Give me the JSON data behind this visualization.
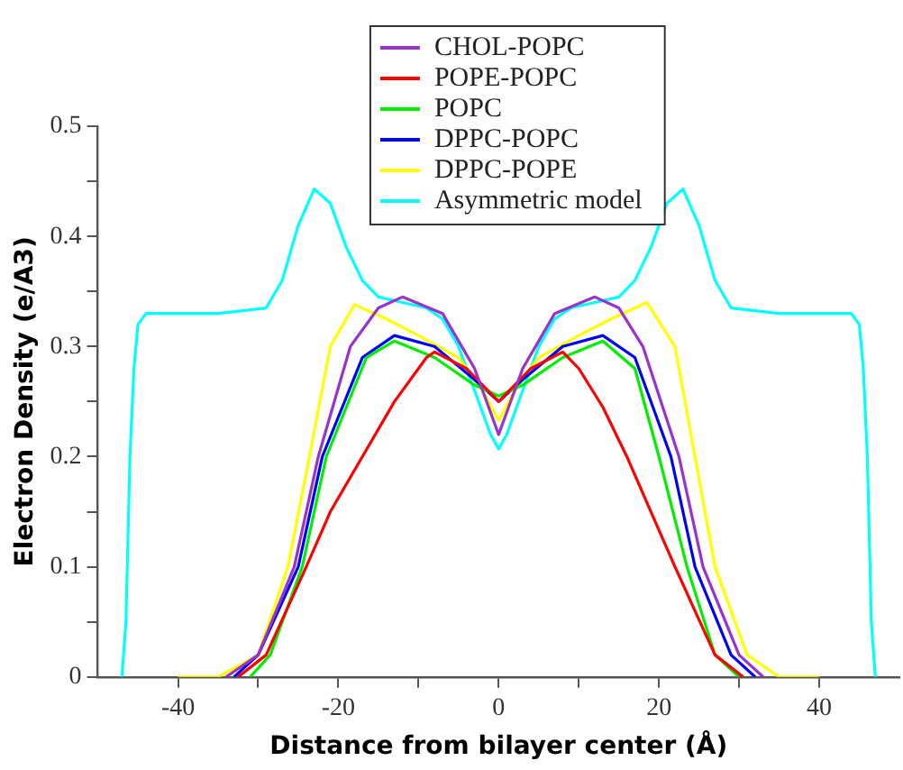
{
  "chart_data": {
    "type": "line",
    "xlabel": "Distance from bilayer center (Å)",
    "ylabel": "Electron Density (e/A3)",
    "xlim": [
      -50,
      50
    ],
    "ylim": [
      0,
      0.5
    ],
    "xticks": [
      -40,
      {
        "value": -30,
        "label": null
      },
      -20,
      {
        "value": -10,
        "label": null
      },
      0,
      {
        "value": 10,
        "label": null
      },
      20,
      {
        "value": 30,
        "label": null
      },
      40
    ],
    "yticks": [
      0,
      {
        "value": 0.05,
        "label": null
      },
      0.1,
      {
        "value": 0.15,
        "label": null
      },
      0.2,
      {
        "value": 0.25,
        "label": null
      },
      0.3,
      {
        "value": 0.35,
        "label": null
      },
      0.4,
      {
        "value": 0.45,
        "label": null
      },
      0.5
    ],
    "grid": false,
    "legend": "top",
    "marker": "none",
    "line_style": "solid",
    "series": [
      {
        "name": "CHOL-POPC",
        "color": "#9933cc",
        "x": [
          -34,
          -30,
          -25.5,
          -22.5,
          -18.5,
          -15,
          -12,
          -7,
          -3,
          0,
          3,
          7,
          12,
          15,
          18,
          22.5,
          25.5,
          30,
          33
        ],
        "values": [
          0,
          0.02,
          0.1,
          0.2,
          0.3,
          0.335,
          0.345,
          0.33,
          0.28,
          0.22,
          0.28,
          0.33,
          0.345,
          0.335,
          0.3,
          0.2,
          0.1,
          0.02,
          0
        ]
      },
      {
        "name": "POPE-POPC",
        "color": "#ff0000",
        "x": [
          -32.5,
          -29,
          -24,
          -21,
          -17,
          -13,
          -9,
          -8,
          -4,
          0,
          4,
          8,
          10,
          13,
          16,
          19,
          22,
          27,
          30.5
        ],
        "values": [
          0,
          0.02,
          0.1,
          0.15,
          0.2,
          0.25,
          0.29,
          0.295,
          0.28,
          0.25,
          0.28,
          0.295,
          0.28,
          0.245,
          0.2,
          0.15,
          0.1,
          0.02,
          0
        ]
      },
      {
        "name": "POPC",
        "color": "#00ee00",
        "x": [
          -31,
          -28.5,
          -24.5,
          -21.5,
          -16.5,
          -13,
          -8,
          -3,
          0,
          3,
          8,
          13,
          17,
          20,
          23.5,
          27,
          30
        ],
        "values": [
          0,
          0.02,
          0.1,
          0.2,
          0.29,
          0.305,
          0.29,
          0.265,
          0.255,
          0.265,
          0.29,
          0.305,
          0.28,
          0.2,
          0.1,
          0.02,
          0
        ]
      },
      {
        "name": "DPPC-POPC",
        "color": "#0000ff",
        "x": [
          -33,
          -30,
          -25,
          -22,
          -17,
          -13,
          -8,
          -3,
          0,
          3,
          8,
          13,
          17,
          21.5,
          24.5,
          29,
          32
        ],
        "values": [
          0,
          0.02,
          0.1,
          0.2,
          0.29,
          0.31,
          0.3,
          0.27,
          0.25,
          0.27,
          0.3,
          0.31,
          0.29,
          0.2,
          0.1,
          0.02,
          0
        ]
      },
      {
        "name": "DPPC-POPE",
        "color": "#ffff00",
        "x": [
          -40,
          -35,
          -30,
          -26.3,
          -23.6,
          -21,
          -18,
          -14,
          -10,
          -5,
          -2,
          0,
          2,
          5,
          10,
          14,
          18.5,
          22,
          24.5,
          27,
          31,
          35,
          40
        ],
        "values": [
          0,
          0,
          0.02,
          0.1,
          0.2,
          0.3,
          0.338,
          0.325,
          0.31,
          0.29,
          0.26,
          0.233,
          0.26,
          0.29,
          0.31,
          0.325,
          0.34,
          0.3,
          0.2,
          0.1,
          0.02,
          0,
          0
        ]
      },
      {
        "name": "Asymmetric model",
        "color": "#00ffff",
        "x": [
          -47,
          -46.5,
          -46,
          -45.5,
          -45,
          -44,
          -35,
          -29,
          -27,
          -25,
          -23,
          -21,
          -19,
          -17,
          -15,
          -12,
          -9,
          -7,
          -5,
          -3,
          -1,
          0,
          1,
          3,
          5,
          7,
          9,
          12,
          15,
          17,
          19,
          21,
          23,
          25,
          27,
          29,
          35,
          44,
          45,
          45.5,
          46,
          46.5,
          47
        ],
        "values": [
          0,
          0.05,
          0.2,
          0.28,
          0.32,
          0.33,
          0.33,
          0.335,
          0.36,
          0.41,
          0.443,
          0.43,
          0.39,
          0.36,
          0.345,
          0.34,
          0.335,
          0.325,
          0.3,
          0.26,
          0.22,
          0.207,
          0.22,
          0.26,
          0.3,
          0.325,
          0.335,
          0.34,
          0.345,
          0.36,
          0.39,
          0.43,
          0.443,
          0.41,
          0.36,
          0.335,
          0.33,
          0.33,
          0.32,
          0.28,
          0.2,
          0.05,
          0
        ]
      }
    ]
  }
}
